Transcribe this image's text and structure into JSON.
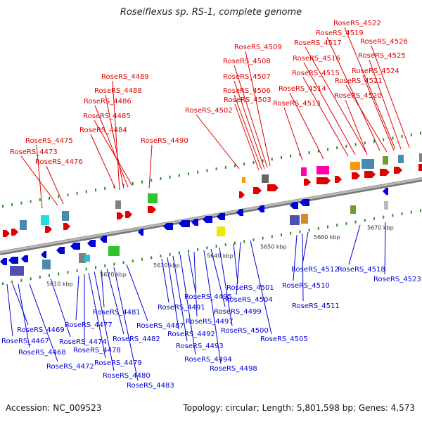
{
  "title": "Roseiflexus sp. RS-1, complete genome",
  "footer": {
    "accession": "Accession: NC_009523",
    "topology": "Topology: circular; Length: 5,801,598 bp; Genes: 4,573"
  },
  "colors": {
    "forward": "#e00000",
    "reverse": "#0000d8",
    "backbone": "#999999",
    "tick": "#2a8a2a"
  },
  "kbp_labels": [
    "5610 kbp",
    "5620 kbp",
    "5630 kbp",
    "5640 kbp",
    "5650 kbp",
    "5660 kbp",
    "5670 kbp"
  ],
  "forward_genes": [
    "RoseRS_4475",
    "RoseRS_4473",
    "RoseRS_4476",
    "RoseRS_4489",
    "RoseRS_4488",
    "RoseRS_4486",
    "RoseRS_4485",
    "RoseRS_4484",
    "RoseRS_4490",
    "RoseRS_4502",
    "RoseRS_4509",
    "RoseRS_4508",
    "RoseRS_4507",
    "RoseRS_4506",
    "RoseRS_4503",
    "RoseRS_4522",
    "RoseRS_4519",
    "RoseRS_4517",
    "RoseRS_4516",
    "RoseRS_4515",
    "RoseRS_4514",
    "RoseRS_4513",
    "RoseRS_4526",
    "RoseRS_4525",
    "RoseRS_4524",
    "RoseRS_4521",
    "RoseRS_4520"
  ],
  "reverse_genes": [
    "RoseRS_4469",
    "RoseRS_4467",
    "RoseRS_4468",
    "RoseRS_4472",
    "RoseRS_4474",
    "RoseRS_4477",
    "RoseRS_4478",
    "RoseRS_4479",
    "RoseRS_4480",
    "RoseRS_4481",
    "RoseRS_4482",
    "RoseRS_4483",
    "RoseRS_4487",
    "RoseRS_4491",
    "RoseRS_4492",
    "RoseRS_4493",
    "RoseRS_4494",
    "RoseRS_4495",
    "RoseRS_4497",
    "RoseRS_4498",
    "RoseRS_4499",
    "RoseRS_4500",
    "RoseRS_4501",
    "RoseRS_4504",
    "RoseRS_4505",
    "RoseRS_4510",
    "RoseRS_4511",
    "RoseRS_4512",
    "RoseRS_4518",
    "RoseRS_4523"
  ]
}
